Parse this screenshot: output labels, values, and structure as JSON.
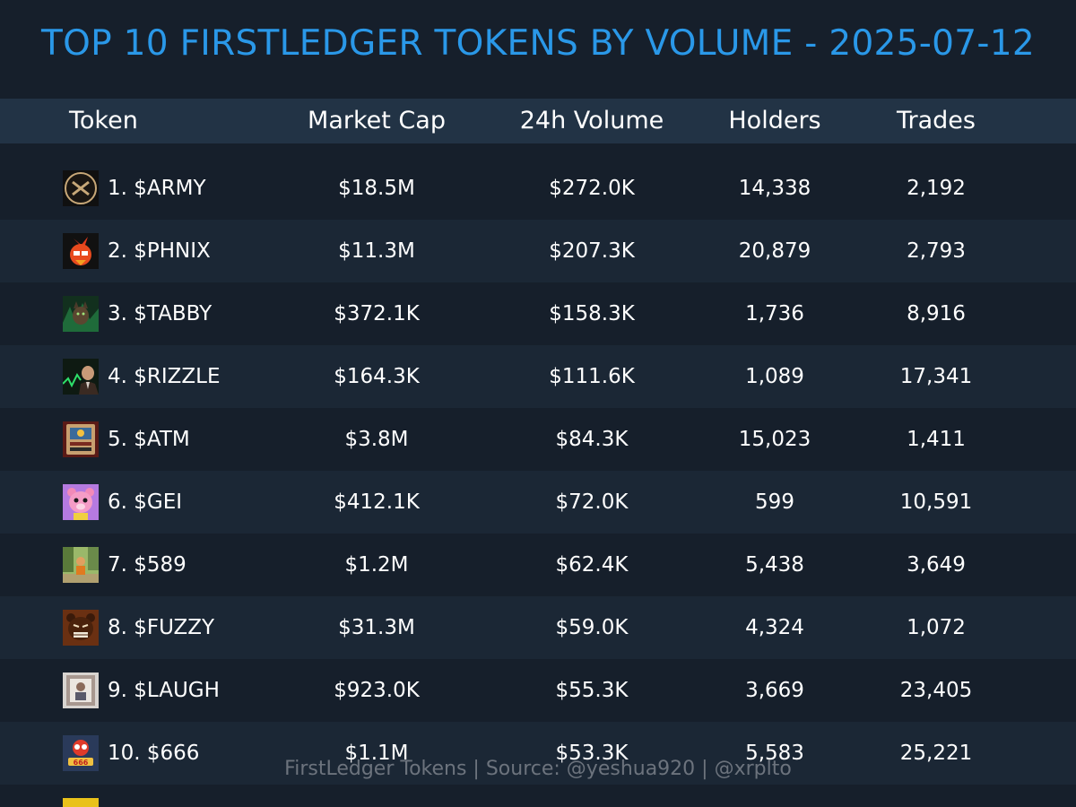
{
  "title": "TOP 10 FIRSTLEDGER TOKENS BY VOLUME - 2025-07-12",
  "columns": {
    "token": "Token",
    "market_cap": "Market Cap",
    "volume_24h": "24h Volume",
    "holders": "Holders",
    "trades": "Trades"
  },
  "rows": [
    {
      "rank_name": "1. $ARMY",
      "market_cap": "$18.5M",
      "volume_24h": "$272.0K",
      "holders": "14,338",
      "trades": "2,192",
      "icon": "army-logo-icon"
    },
    {
      "rank_name": "2. $PHNIX",
      "market_cap": "$11.3M",
      "volume_24h": "$207.3K",
      "holders": "20,879",
      "trades": "2,793",
      "icon": "phoenix-bird-icon"
    },
    {
      "rank_name": "3. $TABBY",
      "market_cap": "$372.1K",
      "volume_24h": "$158.3K",
      "holders": "1,736",
      "trades": "8,916",
      "icon": "tabby-cat-icon"
    },
    {
      "rank_name": "4. $RIZZLE",
      "market_cap": "$164.3K",
      "volume_24h": "$111.6K",
      "holders": "1,089",
      "trades": "17,341",
      "icon": "rizzle-man-icon"
    },
    {
      "rank_name": "5. $ATM",
      "market_cap": "$3.8M",
      "volume_24h": "$84.3K",
      "holders": "15,023",
      "trades": "1,411",
      "icon": "atm-machine-icon"
    },
    {
      "rank_name": "6. $GEI",
      "market_cap": "$412.1K",
      "volume_24h": "$72.0K",
      "holders": "599",
      "trades": "10,591",
      "icon": "pink-bear-icon"
    },
    {
      "rank_name": "7. $589",
      "market_cap": "$1.2M",
      "volume_24h": "$62.4K",
      "holders": "5,438",
      "trades": "3,649",
      "icon": "city-character-icon"
    },
    {
      "rank_name": "8. $FUZZY",
      "market_cap": "$31.3M",
      "volume_24h": "$59.0K",
      "holders": "4,324",
      "trades": "1,072",
      "icon": "fuzzy-bear-icon"
    },
    {
      "rank_name": "9. $LAUGH",
      "market_cap": "$923.0K",
      "volume_24h": "$55.3K",
      "holders": "3,669",
      "trades": "23,405",
      "icon": "laugh-poster-icon"
    },
    {
      "rank_name": "10. $666",
      "market_cap": "$1.1M",
      "volume_24h": "$53.3K",
      "holders": "5,583",
      "trades": "25,221",
      "icon": "666-character-icon"
    }
  ],
  "footer": "FirstLedger Tokens | Source: @yeshua920 | @xrplto",
  "colors": {
    "background": "#161f2b",
    "header_bg": "#223345",
    "alt_row_bg": "#1b2735",
    "title": "#2a98e8",
    "footer": "#6c737d"
  }
}
